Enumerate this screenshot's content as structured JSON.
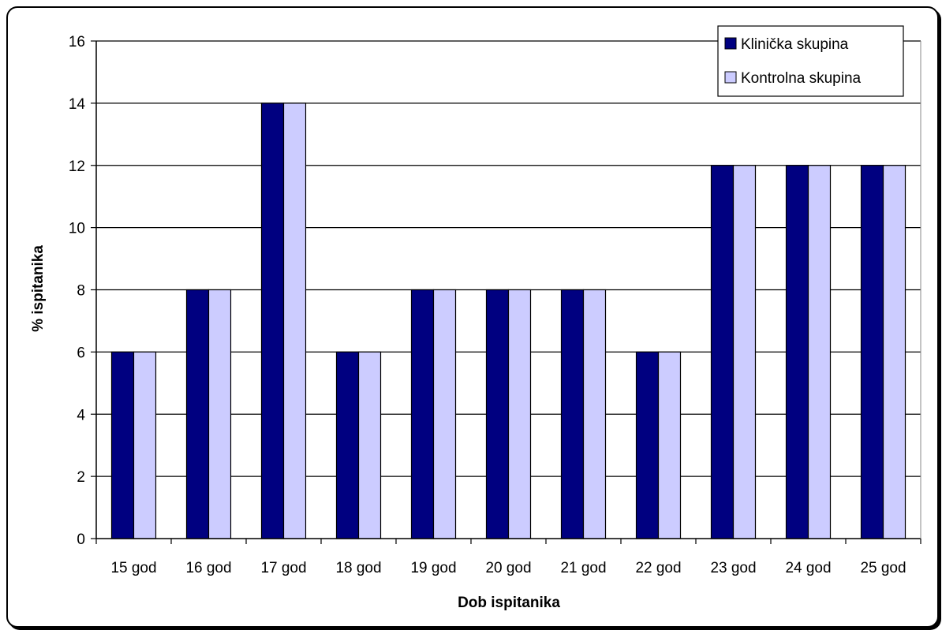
{
  "chart_data": {
    "type": "bar",
    "title": "",
    "xlabel": "Dob ispitanika",
    "ylabel": "% ispitanika",
    "ylim": [
      0,
      16
    ],
    "yticks": [
      0,
      2,
      4,
      6,
      8,
      10,
      12,
      14,
      16
    ],
    "grid": true,
    "legend_position": "top-right",
    "categories": [
      "15 god",
      "16 god",
      "17 god",
      "18 god",
      "19 god",
      "20 god",
      "21 god",
      "22 god",
      "23 god",
      "24 god",
      "25 god"
    ],
    "series": [
      {
        "name": "Klinička skupina",
        "color": "#000080",
        "values": [
          6,
          8,
          14,
          6,
          8,
          8,
          8,
          6,
          12,
          12,
          12
        ]
      },
      {
        "name": "Kontrolna skupina",
        "color": "#ccccff",
        "values": [
          6,
          8,
          14,
          6,
          8,
          8,
          8,
          6,
          12,
          12,
          12
        ]
      }
    ]
  }
}
